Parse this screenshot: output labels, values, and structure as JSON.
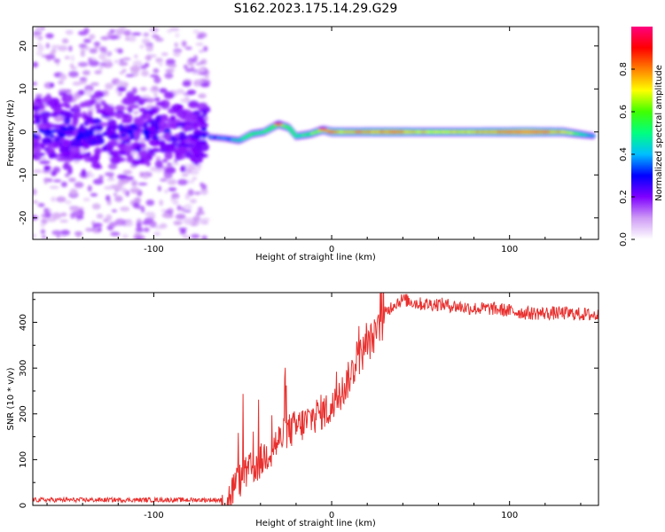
{
  "title": "S162.2023.175.14.29.G29",
  "chart_data": [
    {
      "type": "heatmap",
      "title": "S162.2023.175.14.29.G29",
      "xlabel": "Height of straight line (km)",
      "ylabel": "Frequency (Hz)",
      "xlim": [
        -168,
        150
      ],
      "ylim": [
        -25,
        24.5
      ],
      "xticks": [
        -100,
        0,
        100
      ],
      "xtick_labels": [
        "-100",
        "0",
        "100"
      ],
      "yticks": [
        -20,
        -10,
        0,
        10,
        20
      ],
      "ytick_labels": [
        "-20",
        "-10",
        "0",
        "10",
        "20"
      ],
      "noise_region_x": [
        -168,
        -70
      ],
      "ridge": [
        {
          "x": -68,
          "f": -1.2,
          "a": 0.35
        },
        {
          "x": -60,
          "f": -1.5,
          "a": 0.35
        },
        {
          "x": -52,
          "f": -2.0,
          "a": 0.45
        },
        {
          "x": -45,
          "f": -0.5,
          "a": 0.55
        },
        {
          "x": -38,
          "f": 0.0,
          "a": 0.5
        },
        {
          "x": -30,
          "f": 1.8,
          "a": 0.6
        },
        {
          "x": -24,
          "f": 1.0,
          "a": 0.55
        },
        {
          "x": -20,
          "f": -1.0,
          "a": 0.5
        },
        {
          "x": -12,
          "f": -0.5,
          "a": 0.55
        },
        {
          "x": -5,
          "f": 0.5,
          "a": 0.65
        },
        {
          "x": 0,
          "f": 0.0,
          "a": 0.75
        },
        {
          "x": 10,
          "f": 0.0,
          "a": 0.7
        },
        {
          "x": 20,
          "f": 0.0,
          "a": 0.75
        },
        {
          "x": 35,
          "f": 0.0,
          "a": 0.8
        },
        {
          "x": 50,
          "f": 0.0,
          "a": 0.7
        },
        {
          "x": 70,
          "f": 0.0,
          "a": 0.7
        },
        {
          "x": 90,
          "f": 0.0,
          "a": 0.75
        },
        {
          "x": 110,
          "f": 0.0,
          "a": 0.85
        },
        {
          "x": 130,
          "f": 0.0,
          "a": 0.7
        },
        {
          "x": 148,
          "f": -1.0,
          "a": 0.35
        }
      ],
      "colorbar": {
        "label": "Normalized spectral amplitude",
        "range": [
          0,
          1
        ],
        "ticks": [
          0.0,
          0.2,
          0.4,
          0.6,
          0.8
        ],
        "tick_labels": [
          "0.0",
          "0.2",
          "0.4",
          "0.6",
          "0.8"
        ],
        "stops": [
          "#ffffff",
          "#cf9cf5",
          "#7f00ff",
          "#0000ff",
          "#00bfff",
          "#00ff80",
          "#40ff00",
          "#ffff00",
          "#ff8000",
          "#ff0000",
          "#ff0080"
        ]
      }
    },
    {
      "type": "line",
      "xlabel": "Height of straight line (km)",
      "ylabel": "SNR (10 * v/v)",
      "xlim": [
        -168,
        150
      ],
      "ylim": [
        0,
        465
      ],
      "xticks": [
        -100,
        0,
        100
      ],
      "xtick_labels": [
        "-100",
        "0",
        "100"
      ],
      "yticks": [
        0,
        100,
        200,
        300,
        400
      ],
      "ytick_labels": [
        "0",
        "100",
        "200",
        "300",
        "400"
      ],
      "series": [
        {
          "name": "SNR",
          "color": "#e8312f",
          "x": [
            -168,
            -120,
            -80,
            -60,
            -55,
            -50,
            -45,
            -40,
            -35,
            -30,
            -25,
            -20,
            -15,
            -10,
            -5,
            0,
            5,
            10,
            15,
            20,
            25,
            30,
            35,
            40,
            50,
            60,
            70,
            80,
            90,
            100,
            110,
            120,
            130,
            140,
            150
          ],
          "y": [
            12,
            12,
            12,
            12,
            60,
            80,
            100,
            115,
            140,
            160,
            180,
            190,
            200,
            215,
            225,
            230,
            260,
            300,
            340,
            370,
            395,
            420,
            440,
            450,
            440,
            440,
            435,
            430,
            430,
            425,
            420,
            420,
            420,
            418,
            415
          ],
          "noise_amplitude": 30
        }
      ]
    }
  ]
}
